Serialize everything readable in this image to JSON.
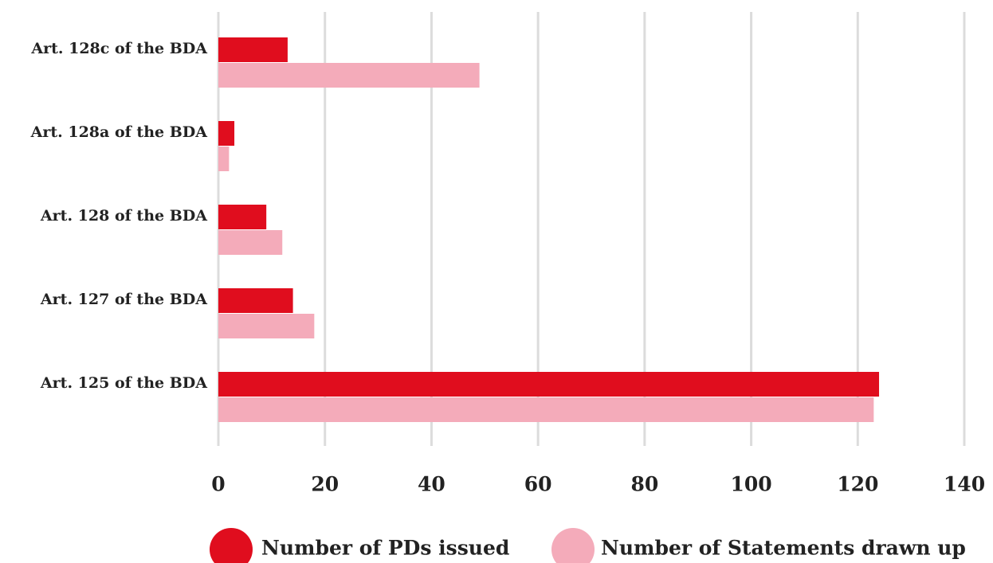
{
  "chart_data": {
    "type": "hbar",
    "categories": [
      "Art. 128c of the BDA",
      "Art. 128a of the BDA",
      "Art. 128 of the BDA",
      "Art. 127 of the BDA",
      "Art. 125 of the BDA"
    ],
    "series": [
      {
        "name": "Number of PDs issued",
        "color": "#e00d1e",
        "values": [
          13,
          3,
          9,
          14,
          124
        ]
      },
      {
        "name": "Number of Statements drawn up",
        "color": "#f4abba",
        "values": [
          49,
          2,
          12,
          18,
          123
        ]
      }
    ],
    "xlim": [
      0,
      140
    ],
    "xticks": [
      0,
      20,
      40,
      60,
      80,
      100,
      120,
      140
    ],
    "grid": true,
    "legend": "bottom"
  }
}
